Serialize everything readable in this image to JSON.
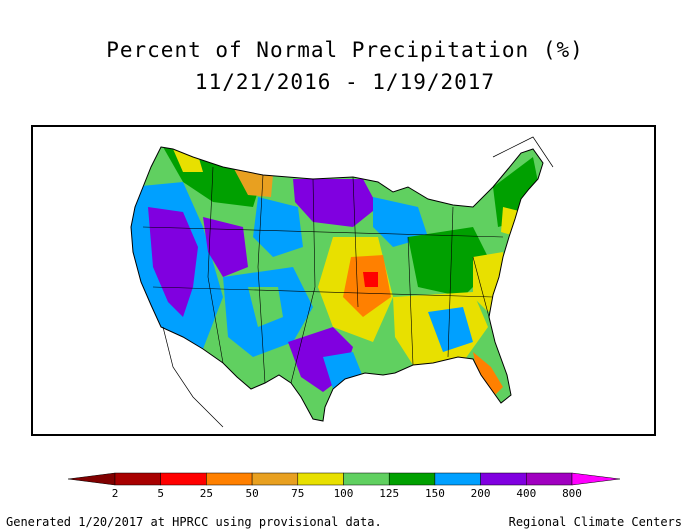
{
  "map": {
    "title_line1": "Percent of Normal Precipitation (%)",
    "title_line2": "11/21/2016 - 1/19/2017",
    "region": "Contiguous United States"
  },
  "legend": {
    "colors": [
      "#a80000",
      "#ff0000",
      "#ff8000",
      "#e8a020",
      "#e8e000",
      "#60d060",
      "#00a000",
      "#00a0ff",
      "#8000e0",
      "#a000c0"
    ],
    "end_left_color": "#800000",
    "end_right_color": "#ff00ff",
    "labels": [
      "2",
      "5",
      "25",
      "50",
      "75",
      "100",
      "125",
      "150",
      "200",
      "400",
      "800"
    ]
  },
  "footer": {
    "left": "Generated 1/20/2017 at HPRCC using provisional data.",
    "right": "Regional Climate Centers"
  }
}
